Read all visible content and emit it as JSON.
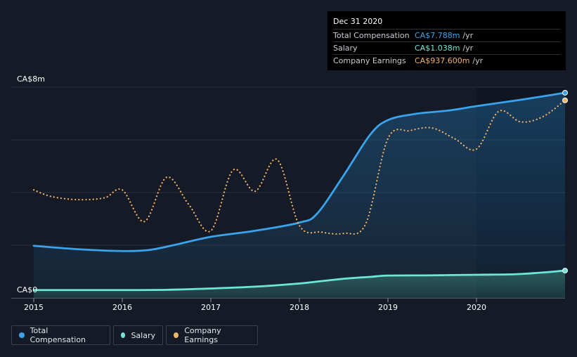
{
  "tooltip": {
    "date": "Dec 31 2020",
    "rows": [
      {
        "label": "Total Compensation",
        "value": "CA$7.788m",
        "unit": "/yr",
        "color": "#3ba3ec"
      },
      {
        "label": "Salary",
        "value": "CA$1.038m",
        "unit": "/yr",
        "color": "#6ee6d6"
      },
      {
        "label": "Company Earnings",
        "value": "CA$937.600m",
        "unit": "/yr",
        "color": "#f2b36b"
      }
    ]
  },
  "legend": [
    {
      "label": "Total Compensation",
      "color": "#3ba3ec"
    },
    {
      "label": "Salary",
      "color": "#6ee6d6"
    },
    {
      "label": "Company Earnings",
      "color": "#f2b36b"
    }
  ],
  "chart_data": {
    "type": "line",
    "ylim": [
      0,
      8
    ],
    "y_tick_labels": [
      "CA$0",
      "CA$8m"
    ],
    "x_tick_labels": [
      "2015",
      "2016",
      "2017",
      "2018",
      "2019",
      "2020"
    ],
    "x_ticks": [
      2015.0,
      2016.0,
      2017.0,
      2018.0,
      2019.0,
      2020.0
    ],
    "xlim": [
      2015.0,
      2021.0
    ],
    "highlight_from": 2020.0,
    "series": [
      {
        "name": "Total Compensation",
        "color": "#3ba3ec",
        "style": "solid",
        "fill": true,
        "points": [
          [
            2015.0,
            1.98
          ],
          [
            2015.5,
            1.85
          ],
          [
            2016.0,
            1.78
          ],
          [
            2016.3,
            1.82
          ],
          [
            2016.6,
            2.02
          ],
          [
            2017.0,
            2.32
          ],
          [
            2017.5,
            2.55
          ],
          [
            2018.0,
            2.86
          ],
          [
            2018.2,
            3.2
          ],
          [
            2018.5,
            4.65
          ],
          [
            2018.8,
            6.2
          ],
          [
            2019.0,
            6.75
          ],
          [
            2019.3,
            6.98
          ],
          [
            2019.7,
            7.12
          ],
          [
            2020.0,
            7.28
          ],
          [
            2020.5,
            7.52
          ],
          [
            2021.0,
            7.788
          ]
        ]
      },
      {
        "name": "Salary",
        "color": "#6ee6d6",
        "style": "solid",
        "fill": true,
        "points": [
          [
            2015.0,
            0.3
          ],
          [
            2015.5,
            0.3
          ],
          [
            2016.0,
            0.3
          ],
          [
            2016.5,
            0.31
          ],
          [
            2017.0,
            0.36
          ],
          [
            2017.5,
            0.43
          ],
          [
            2018.0,
            0.55
          ],
          [
            2018.5,
            0.73
          ],
          [
            2018.8,
            0.8
          ],
          [
            2019.0,
            0.85
          ],
          [
            2019.5,
            0.86
          ],
          [
            2020.0,
            0.88
          ],
          [
            2020.5,
            0.91
          ],
          [
            2021.0,
            1.038
          ]
        ]
      },
      {
        "name": "Company Earnings",
        "color": "#f2b36b",
        "style": "dotted",
        "fill": false,
        "points": [
          [
            2015.0,
            4.1
          ],
          [
            2015.2,
            3.85
          ],
          [
            2015.5,
            3.73
          ],
          [
            2015.8,
            3.8
          ],
          [
            2016.0,
            4.1
          ],
          [
            2016.25,
            2.9
          ],
          [
            2016.5,
            4.58
          ],
          [
            2016.75,
            3.55
          ],
          [
            2017.0,
            2.55
          ],
          [
            2017.25,
            4.85
          ],
          [
            2017.5,
            4.05
          ],
          [
            2017.75,
            5.25
          ],
          [
            2018.0,
            2.75
          ],
          [
            2018.25,
            2.5
          ],
          [
            2018.5,
            2.45
          ],
          [
            2018.75,
            2.82
          ],
          [
            2019.0,
            6.05
          ],
          [
            2019.25,
            6.35
          ],
          [
            2019.5,
            6.45
          ],
          [
            2019.75,
            6.05
          ],
          [
            2020.0,
            5.65
          ],
          [
            2020.25,
            7.08
          ],
          [
            2020.5,
            6.68
          ],
          [
            2020.75,
            6.88
          ],
          [
            2021.0,
            7.5
          ]
        ]
      }
    ]
  }
}
